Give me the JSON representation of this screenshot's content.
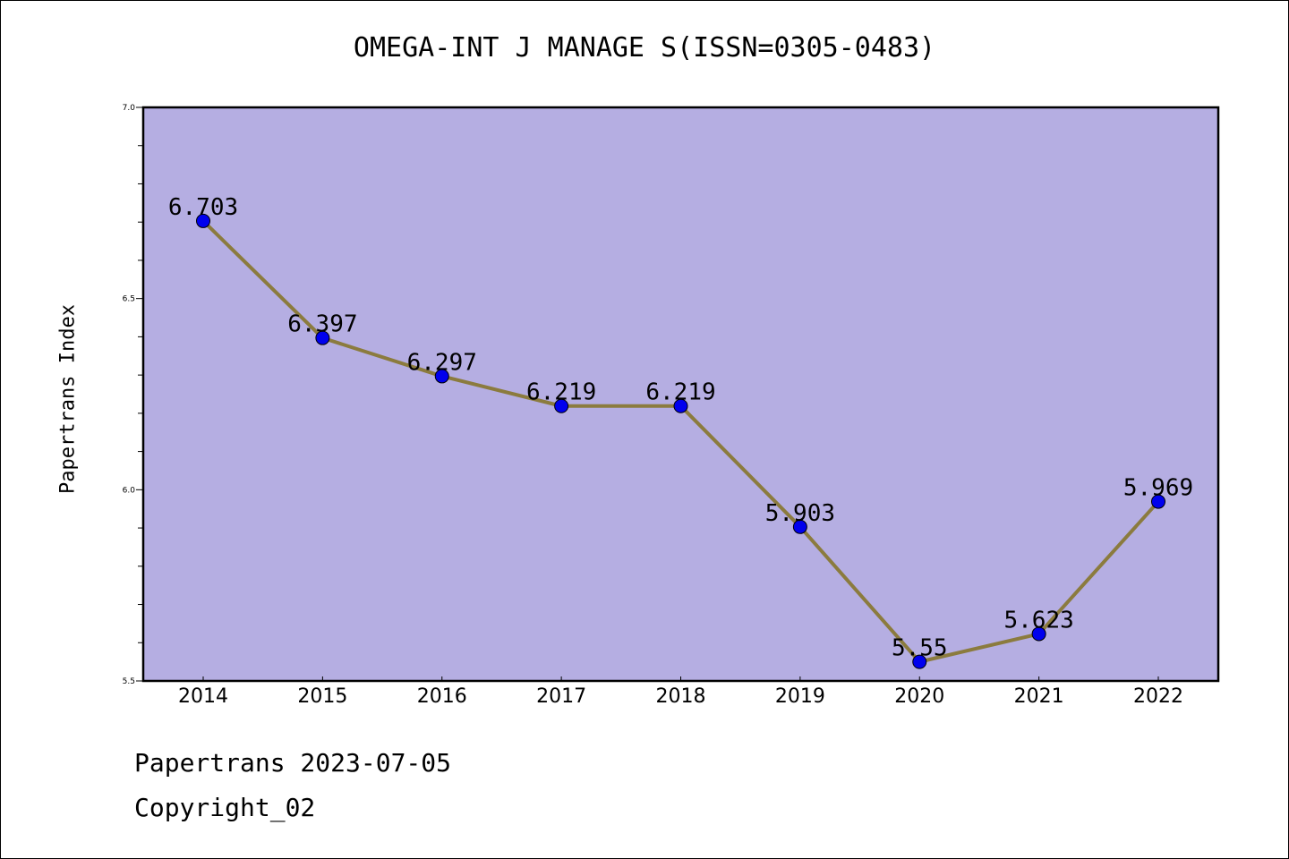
{
  "title": "OMEGA-INT J MANAGE S(ISSN=0305-0483)",
  "footer": {
    "line1": "Papertrans 2023-07-05",
    "line2": "Copyright_02"
  },
  "colors": {
    "plot_background": "#b5aee2",
    "line": "#8b7b3e",
    "marker": "#0000ee"
  },
  "chart_data": {
    "type": "line",
    "title": "OMEGA-INT J MANAGE S(ISSN=0305-0483)",
    "xlabel": "",
    "ylabel": "Papertrans Index",
    "categories": [
      "2014",
      "2015",
      "2016",
      "2017",
      "2018",
      "2019",
      "2020",
      "2021",
      "2022"
    ],
    "values": [
      6.703,
      6.397,
      6.297,
      6.219,
      6.219,
      5.903,
      5.55,
      5.623,
      5.969
    ],
    "data_labels": [
      "6.703",
      "6.397",
      "6.297",
      "6.219",
      "6.219",
      "5.903",
      "5.55",
      "5.623",
      "5.969"
    ],
    "ylim": [
      5.5,
      7.0
    ],
    "yticks": [
      "5.5",
      "6.0",
      "6.5",
      "7.0"
    ],
    "grid": false,
    "legend": "none"
  }
}
